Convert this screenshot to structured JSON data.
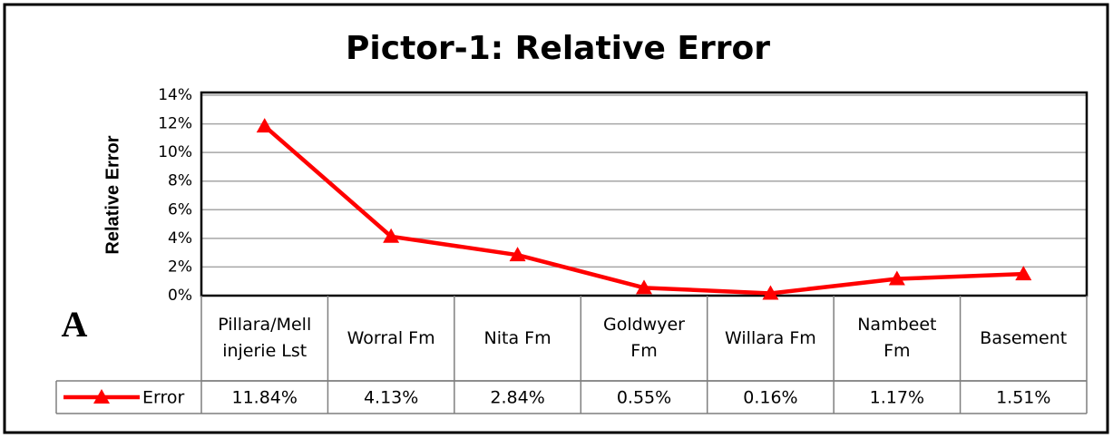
{
  "chart_data": {
    "type": "line",
    "title": "Pictor-1: Relative Error",
    "y_label": "Relative Error",
    "panel_label": "A",
    "categories": [
      "Pillara/Mellinjerie Lst",
      "Worral Fm",
      "Nita Fm",
      "Goldwyer Fm",
      "Willara Fm",
      "Nambeet Fm",
      "Basement"
    ],
    "series": [
      {
        "name": "Error",
        "color": "#ff0000",
        "values": [
          11.84,
          4.13,
          2.84,
          0.55,
          0.16,
          1.17,
          1.51
        ],
        "value_labels": [
          "11.84%",
          "4.13%",
          "2.84%",
          "0.55%",
          "0.16%",
          "1.17%",
          "1.51%"
        ]
      }
    ],
    "ylim": [
      0,
      14
    ],
    "yticks": [
      {
        "value": 0,
        "label": "0%"
      },
      {
        "value": 2,
        "label": "2%"
      },
      {
        "value": 4,
        "label": "4%"
      },
      {
        "value": 6,
        "label": "6%"
      },
      {
        "value": 8,
        "label": "8%"
      },
      {
        "value": 10,
        "label": "10%"
      },
      {
        "value": 12,
        "label": "12%"
      },
      {
        "value": 14,
        "label": "14%"
      }
    ],
    "grid": true
  }
}
